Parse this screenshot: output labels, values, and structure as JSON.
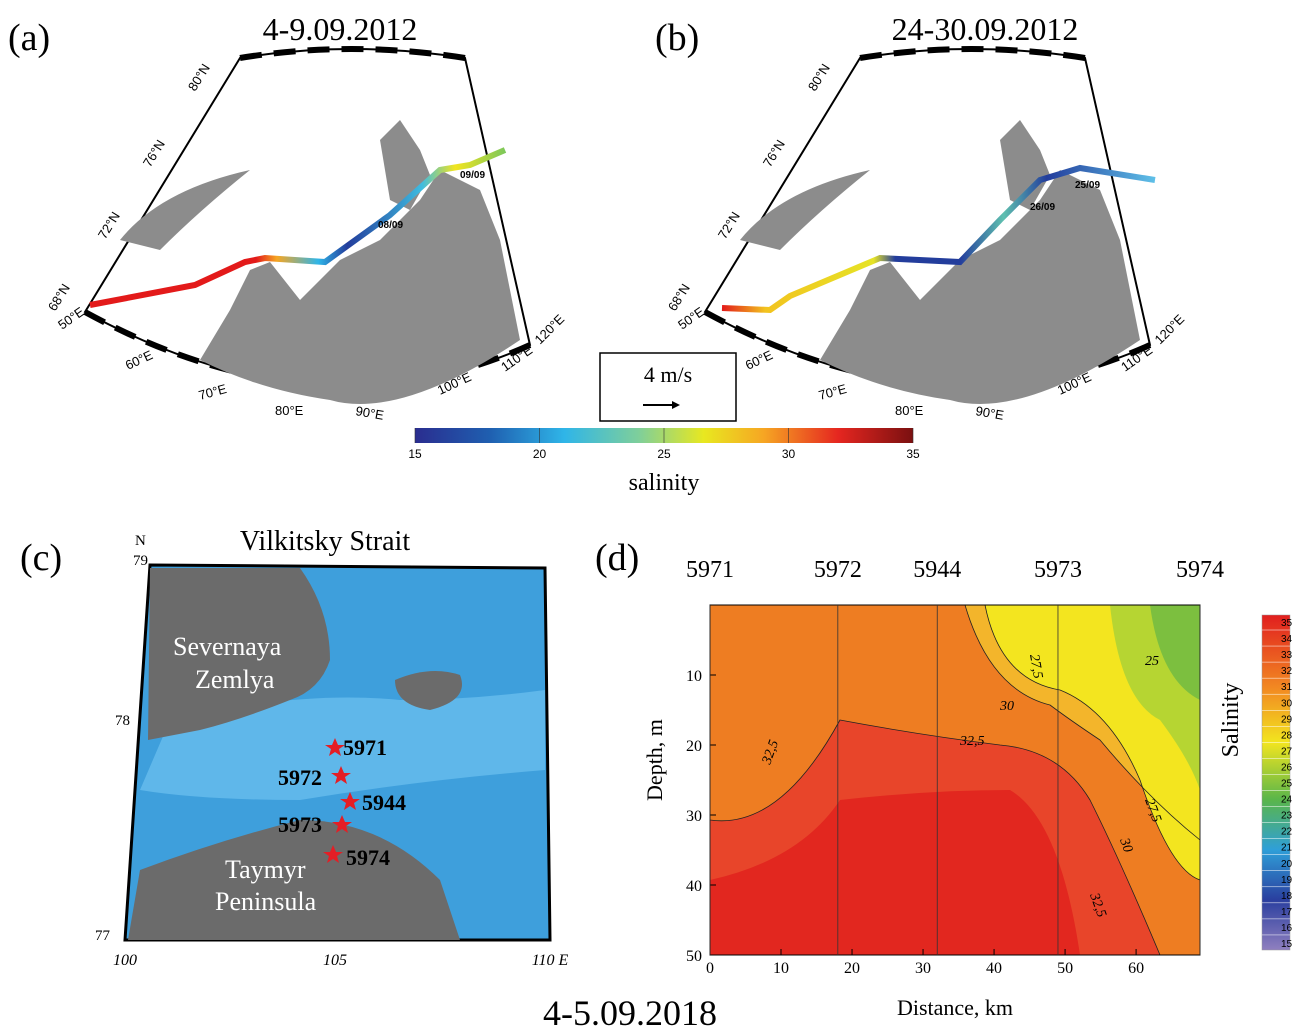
{
  "panel_a": {
    "label": "(a)",
    "title": "4-9.09.2012",
    "lat_labels": [
      "80°N",
      "76°N",
      "72°N",
      "68°N"
    ],
    "lon_labels": [
      "50°E",
      "60°E",
      "70°E",
      "80°E",
      "90°E",
      "100°E",
      "110°E",
      "120°E"
    ],
    "dates": [
      "09/09",
      "08/09"
    ]
  },
  "panel_b": {
    "label": "(b)",
    "title": "24-30.09.2012",
    "lat_labels": [
      "80°N",
      "76°N",
      "72°N",
      "68°N"
    ],
    "lon_labels": [
      "50°E",
      "60°E",
      "70°E",
      "80°E",
      "90°E",
      "100°E",
      "110°E",
      "120°E"
    ],
    "dates": [
      "25/09",
      "26/09"
    ]
  },
  "scale": {
    "label": "4 m/s"
  },
  "colorbar": {
    "label": "salinity",
    "lim": [
      15,
      35
    ],
    "ticks": [
      15,
      20,
      25,
      30,
      35
    ]
  },
  "panel_c": {
    "label": "(c)",
    "title": "Vilkitsky Strait",
    "north": "N",
    "lat_ticks": [
      79,
      78,
      77
    ],
    "lon_ticks": [
      100,
      105,
      {
        "value": 110,
        "label": "110 E"
      }
    ],
    "regions": [
      [
        "Severnaya",
        "Zemlya"
      ],
      [
        "Taymyr",
        "Peninsula"
      ]
    ],
    "stations": [
      "5971",
      "5972",
      "5944",
      "5973",
      "5974"
    ]
  },
  "panel_d": {
    "label": "(d)",
    "xlabel": "Distance, km",
    "ylabel": "Depth, m",
    "xlim": [
      0,
      69
    ],
    "ylim": [
      0,
      50
    ],
    "xticks": [
      0,
      10,
      20,
      30,
      40,
      50,
      60
    ],
    "yticks": [
      10,
      20,
      30,
      40,
      50
    ],
    "stations": [
      {
        "name": "5971",
        "distance": 0
      },
      {
        "name": "5972",
        "distance": 18
      },
      {
        "name": "5944",
        "distance": 32
      },
      {
        "name": "5973",
        "distance": 49
      },
      {
        "name": "5974",
        "distance": 69
      }
    ],
    "contour_labels": [
      "27,5",
      "30",
      "32,5",
      "32,5",
      "25",
      "27,5",
      "30",
      "32,5"
    ],
    "colorbar": {
      "label": "Salinity",
      "lim": [
        15,
        35
      ],
      "ticks": [
        15,
        16,
        17,
        18,
        19,
        20,
        21,
        22,
        23,
        24,
        25,
        26,
        27,
        28,
        29,
        30,
        31,
        32,
        33,
        34,
        35
      ]
    }
  },
  "caption": "4-5.09.2018"
}
